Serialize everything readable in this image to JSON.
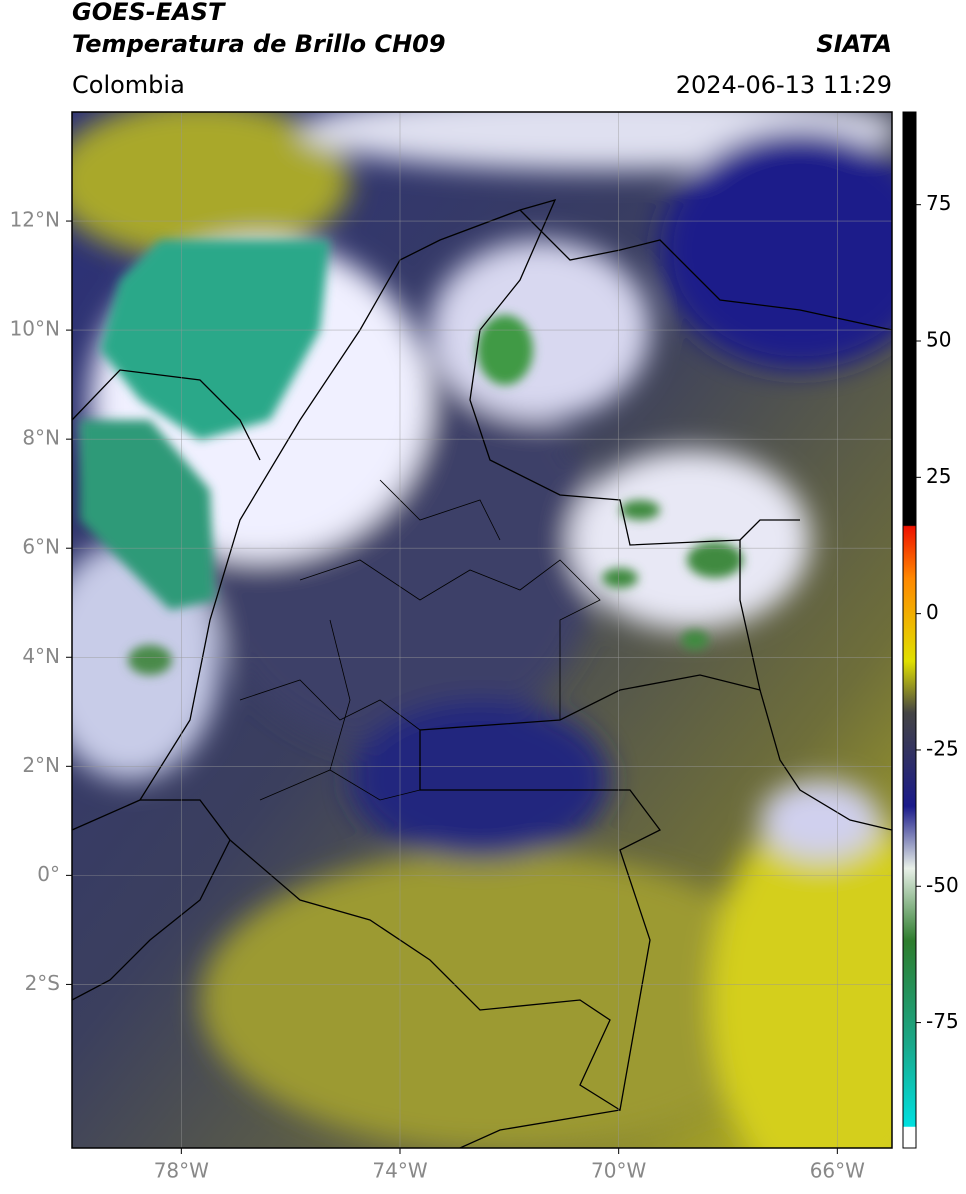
{
  "chart_data": {
    "type": "map",
    "title": [
      "GOES-EAST",
      "Temperatura de Brillo CH09"
    ],
    "subtitle": "Colombia",
    "source": "SIATA",
    "date": "2024-06-13 11:29",
    "xlim": [
      -80,
      -65
    ],
    "ylim": [
      -5,
      14
    ],
    "xticks": [
      {
        "value": -78,
        "label": "78°W"
      },
      {
        "value": -74,
        "label": "74°W"
      },
      {
        "value": -70,
        "label": "70°W"
      },
      {
        "value": -66,
        "label": "66°W"
      }
    ],
    "yticks": [
      {
        "value": 12,
        "label": "12°N"
      },
      {
        "value": 10,
        "label": "10°N"
      },
      {
        "value": 8,
        "label": "8°N"
      },
      {
        "value": 6,
        "label": "6°N"
      },
      {
        "value": 4,
        "label": "4°N"
      },
      {
        "value": 2,
        "label": "2°N"
      },
      {
        "value": 0,
        "label": "0°"
      },
      {
        "value": -2,
        "label": "2°S"
      }
    ],
    "grid": true,
    "clim": [
      -98,
      92
    ],
    "cticks": [
      75,
      50,
      25,
      0,
      -25,
      -50,
      -75
    ]
  }
}
